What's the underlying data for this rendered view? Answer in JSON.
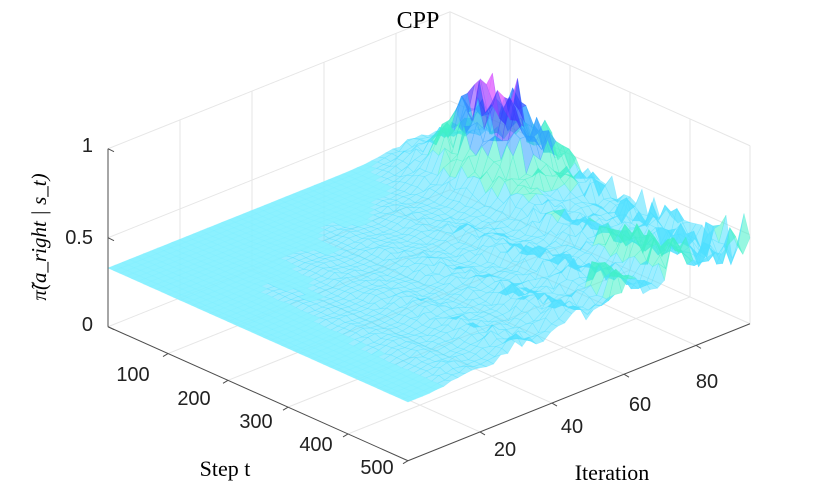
{
  "chart_data": {
    "type": "surface",
    "title": "CPP",
    "xlabel": "Step t",
    "ylabel": "Iteration",
    "zlabel": "π̃(a_right | s_t)",
    "x_ticks": [
      "100",
      "200",
      "300",
      "400",
      "500"
    ],
    "y_ticks": [
      "20",
      "40",
      "60",
      "80"
    ],
    "z_ticks": [
      "0",
      "0.5",
      "1"
    ],
    "xlim": [
      0,
      500
    ],
    "ylim": [
      0,
      95
    ],
    "zlim": [
      0,
      1
    ],
    "base_value": 0.33,
    "ridge_iterations": [
      15,
      30,
      45,
      60,
      75
    ],
    "peak_value": 0.9,
    "description_note": "",
    "colors": {
      "surface_base": "#7fefff",
      "ridge_low": "#4fe0ff",
      "ridge_mid": "#2fa0ff",
      "ridge_high": "#3c3cff",
      "peak": "#e060ff",
      "grid": "#e6e6e6",
      "axis": "#4d4d4d"
    }
  }
}
